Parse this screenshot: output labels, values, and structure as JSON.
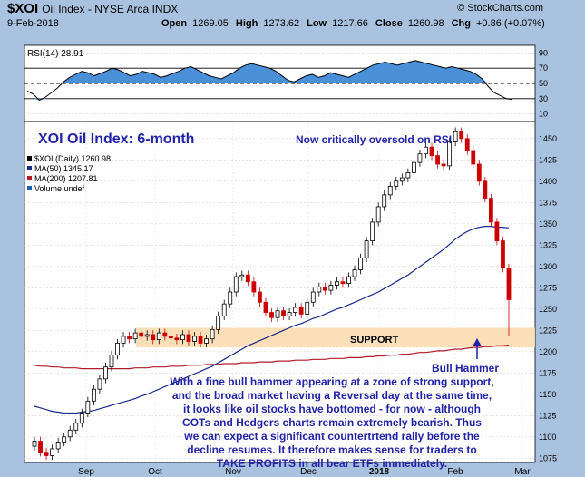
{
  "header": {
    "symbol": "$XOI",
    "name": "Oil Index - NYSE Arca INDX",
    "brand": "© StockCharts.com",
    "date": "9-Feb-2018",
    "open_label": "Open",
    "open": "1269.05",
    "high_label": "High",
    "high": "1273.62",
    "low_label": "Low",
    "low": "1217.66",
    "close_label": "Close",
    "close": "1260.98",
    "chg_label": "Chg",
    "chg": "+0.86 (+0.07%)"
  },
  "annotations": {
    "chart_title": "XOI Oil Index: 6-month",
    "rsi_note": "Now critically oversold on RSI",
    "support_label": "SUPPORT",
    "hammer_label": "Bull Hammer",
    "commentary": [
      "With a fine bull hammer appearing at a zone of strong support,",
      "and the broad market having a Reversal day at the same time,",
      "it looks like oil stocks have bottomed - for now - although",
      "COTs and Hedgers charts remain extremely bearish. Thus",
      "we can expect a significant countertrtend rally before the",
      "decline resumes. It therefore makes sense for traders to",
      "TAKE PROFITS in all bear ETFs immediately."
    ]
  },
  "colors": {
    "frame": "#a8c2e0",
    "rsi_fill": "#4a90d9",
    "up_candle": "#000000",
    "down_candle": "#cc0000",
    "ma50": "#1a2a8c",
    "ma200": "#b01c2a",
    "support_band": "#fbdcb0",
    "annotation_text": "#2323a8"
  },
  "chart_data": [
    {
      "type": "line",
      "title": "",
      "legend": "RSI(14) 28.91",
      "ylim": [
        0,
        100
      ],
      "yticks": [
        10,
        30,
        50,
        70,
        90
      ],
      "levels": [
        30,
        50,
        70
      ],
      "grid": true,
      "series": [
        {
          "values": [
            40,
            36,
            28,
            32,
            38,
            44,
            52,
            58,
            62,
            66,
            64,
            60,
            63,
            66,
            70,
            68,
            64,
            60,
            62,
            66,
            64,
            62,
            58,
            60,
            63,
            66,
            70,
            72,
            68,
            64,
            60,
            58,
            56,
            60,
            64,
            70,
            74,
            76,
            74,
            72,
            70,
            66,
            60,
            54,
            52,
            56,
            60,
            62,
            58,
            60,
            64,
            62,
            60,
            58,
            62,
            66,
            70,
            74,
            76,
            78,
            76,
            74,
            76,
            78,
            80,
            78,
            76,
            74,
            72,
            70,
            72,
            70,
            68,
            66,
            62,
            56,
            46,
            38,
            34,
            30,
            28.91
          ]
        }
      ]
    },
    {
      "type": "candlestick",
      "title": "",
      "legend": [
        "$XOI (Daily) 1260.98",
        "MA(50) 1345.17",
        "MA(200) 1207.81",
        "Volume undef"
      ],
      "x_labels": [
        "Sep",
        "Oct",
        "Nov",
        "Dec",
        "2018",
        "Feb",
        "Mar"
      ],
      "ylim": [
        1070,
        1470
      ],
      "yticks": [
        1075,
        1100,
        1125,
        1150,
        1175,
        1200,
        1225,
        1250,
        1275,
        1300,
        1325,
        1350,
        1375,
        1400,
        1425,
        1450
      ],
      "support_zone": [
        1205,
        1228
      ],
      "grid": true,
      "close": [
        1095,
        1082,
        1078,
        1086,
        1094,
        1100,
        1108,
        1116,
        1128,
        1142,
        1156,
        1168,
        1182,
        1196,
        1210,
        1218,
        1215,
        1222,
        1218,
        1220,
        1214,
        1222,
        1218,
        1216,
        1214,
        1220,
        1212,
        1218,
        1210,
        1215,
        1226,
        1242,
        1256,
        1270,
        1288,
        1290,
        1282,
        1270,
        1258,
        1246,
        1240,
        1248,
        1242,
        1246,
        1252,
        1244,
        1258,
        1270,
        1276,
        1272,
        1278,
        1282,
        1280,
        1288,
        1296,
        1310,
        1330,
        1352,
        1370,
        1384,
        1394,
        1400,
        1404,
        1410,
        1422,
        1432,
        1440,
        1430,
        1420,
        1418,
        1446,
        1458,
        1450,
        1436,
        1420,
        1400,
        1380,
        1352,
        1330,
        1298,
        1260.98
      ],
      "ma50": [
        1136,
        1134,
        1132,
        1130,
        1129,
        1128,
        1128,
        1128,
        1129,
        1130,
        1131,
        1133,
        1135,
        1137,
        1139,
        1141,
        1143,
        1145,
        1148,
        1150,
        1153,
        1156,
        1159,
        1162,
        1165,
        1168,
        1171,
        1174,
        1177,
        1180,
        1183,
        1187,
        1191,
        1195,
        1199,
        1203,
        1207,
        1210,
        1213,
        1216,
        1219,
        1222,
        1225,
        1228,
        1231,
        1233,
        1236,
        1239,
        1241,
        1244,
        1247,
        1250,
        1252,
        1255,
        1258,
        1261,
        1264,
        1267,
        1270,
        1274,
        1278,
        1282,
        1286,
        1290,
        1295,
        1300,
        1305,
        1310,
        1315,
        1320,
        1326,
        1332,
        1337,
        1341,
        1344,
        1346,
        1347,
        1347,
        1346,
        1346,
        1345.17
      ],
      "ma200": [
        1184,
        1183,
        1183,
        1182,
        1182,
        1181,
        1181,
        1181,
        1180,
        1180,
        1180,
        1180,
        1180,
        1180,
        1180,
        1180,
        1180,
        1181,
        1181,
        1181,
        1182,
        1182,
        1182,
        1183,
        1183,
        1183,
        1184,
        1184,
        1184,
        1185,
        1185,
        1185,
        1186,
        1186,
        1186,
        1187,
        1187,
        1187,
        1188,
        1188,
        1188,
        1189,
        1189,
        1189,
        1190,
        1190,
        1190,
        1191,
        1191,
        1191,
        1192,
        1192,
        1192,
        1193,
        1193,
        1193,
        1194,
        1194,
        1195,
        1195,
        1196,
        1196,
        1197,
        1197,
        1198,
        1199,
        1199,
        1200,
        1201,
        1201,
        1202,
        1203,
        1203,
        1204,
        1205,
        1205,
        1206,
        1206,
        1207,
        1207,
        1207.81
      ]
    }
  ]
}
